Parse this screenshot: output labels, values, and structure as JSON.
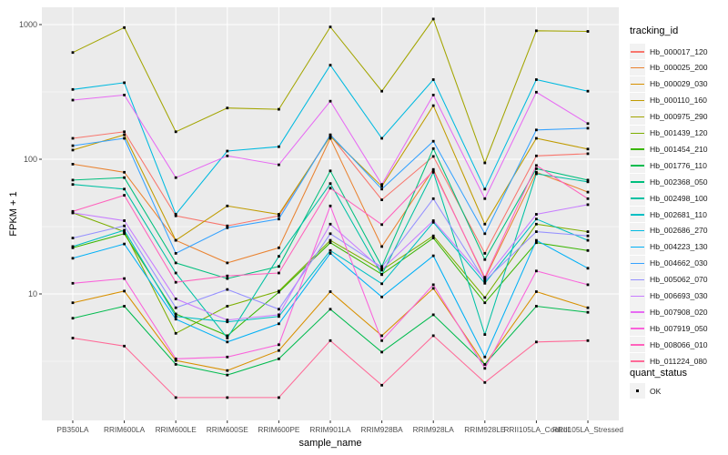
{
  "chart_data": {
    "type": "line",
    "title": "",
    "xlabel": "sample_name",
    "ylabel": "FPKM + 1",
    "x_categories": [
      "PB350LA",
      "RRIM600LA",
      "RRIM600LE",
      "RRIM600SE",
      "RRIM600PE",
      "RRIM901LA",
      "RRIM928BA",
      "RRIM928LA",
      "RRIM928LE",
      "RRII105LA_Control",
      "RRII105LA_Stressed"
    ],
    "y_axis": {
      "scale": "log10",
      "tick_values": [
        10,
        100,
        1000
      ],
      "tick_labels": [
        "10",
        "100",
        "1000"
      ],
      "minor_log10": [
        0.5,
        1.5,
        2.5
      ],
      "range_approx": [
        1.1,
        1300
      ],
      "grid": true
    },
    "legend": {
      "position": "right",
      "title": "tracking_id"
    },
    "quant_status": {
      "title": "quant_status",
      "items": [
        {
          "label": "OK",
          "shape": "black-square"
        }
      ]
    },
    "panel_bg": "#EBEBEB",
    "grid_color": "#FFFFFF",
    "tick_text_color": "#4D4D4D",
    "point_color": "#000000",
    "series": [
      {
        "name": "Hb_000017_120",
        "color": "#F8766D",
        "values": [
          143,
          160,
          38,
          32,
          38,
          150,
          50,
          105,
          20,
          106,
          110
        ]
      },
      {
        "name": "Hb_000025_200",
        "color": "#EA8331",
        "values": [
          92,
          80,
          25,
          17,
          22,
          143,
          22.5,
          84,
          13,
          80,
          57
        ]
      },
      {
        "name": "Hb_000029_030",
        "color": "#D89000",
        "values": [
          8.6,
          10.5,
          3.2,
          2.7,
          3.8,
          10.4,
          4.9,
          11,
          3.0,
          10.4,
          7.9
        ]
      },
      {
        "name": "Hb_000110_160",
        "color": "#C09B00",
        "values": [
          117,
          152,
          25,
          45,
          39,
          148,
          63,
          250,
          33,
          143,
          119
        ]
      },
      {
        "name": "Hb_000975_290",
        "color": "#A3A500",
        "values": [
          620,
          950,
          160,
          240,
          235,
          960,
          320,
          1100,
          94,
          900,
          890
        ]
      },
      {
        "name": "Hb_001439_120",
        "color": "#7CAE00",
        "values": [
          40,
          29,
          5.1,
          8.1,
          10.5,
          25,
          15,
          27,
          9.4,
          33,
          29
        ]
      },
      {
        "name": "Hb_001454_210",
        "color": "#39B600",
        "values": [
          22,
          28,
          7.1,
          4.9,
          10.3,
          24,
          14,
          26,
          8.6,
          24,
          21
        ]
      },
      {
        "name": "Hb_001776_110",
        "color": "#00BB4E",
        "values": [
          6.6,
          8.1,
          3.0,
          2.5,
          3.3,
          7.7,
          3.7,
          7.0,
          3.0,
          8.1,
          7.3
        ]
      },
      {
        "name": "Hb_002368_050",
        "color": "#00BF7D",
        "values": [
          70,
          73,
          17,
          13,
          16,
          82,
          16,
          120,
          18,
          85,
          70
        ]
      },
      {
        "name": "Hb_002498_100",
        "color": "#00C1A3",
        "values": [
          65,
          60,
          14.3,
          4.7,
          19,
          66,
          13.9,
          80,
          5.0,
          78,
          68
        ]
      },
      {
        "name": "Hb_002681_110",
        "color": "#00BFC4",
        "values": [
          22.5,
          29.7,
          6.8,
          6.2,
          6.8,
          21,
          11.9,
          34,
          12,
          36,
          25
        ]
      },
      {
        "name": "Hb_002686_270",
        "color": "#00BAE0",
        "values": [
          330,
          370,
          39,
          115,
          124,
          500,
          143,
          390,
          60,
          390,
          320
        ]
      },
      {
        "name": "Hb_004223_130",
        "color": "#00B0F6",
        "values": [
          18.4,
          23.5,
          6.5,
          4.4,
          6.0,
          20,
          9.5,
          19.2,
          3.4,
          25,
          15.5
        ]
      },
      {
        "name": "Hb_004662_030",
        "color": "#35A2FF",
        "values": [
          126,
          143,
          20,
          31,
          36,
          152,
          60,
          136,
          28,
          165,
          170
        ]
      },
      {
        "name": "Hb_005062_070",
        "color": "#9590FF",
        "values": [
          26,
          32,
          7.9,
          10.8,
          7.7,
          28,
          15.8,
          51,
          12.5,
          29,
          27
        ]
      },
      {
        "name": "Hb_006693_030",
        "color": "#C77CFF",
        "values": [
          40,
          35,
          9.2,
          6.4,
          7.0,
          33,
          15.2,
          35,
          12.8,
          39,
          46
        ]
      },
      {
        "name": "Hb_007908_020",
        "color": "#E76BF3",
        "values": [
          275,
          300,
          73,
          106,
          91,
          270,
          65,
          300,
          51,
          315,
          184
        ]
      },
      {
        "name": "Hb_007919_050",
        "color": "#FA62DB",
        "values": [
          12,
          13,
          3.3,
          3.4,
          4.2,
          45,
          4.5,
          11.7,
          2.8,
          14.8,
          11.7
        ]
      },
      {
        "name": "Hb_008066_010",
        "color": "#FF62BC",
        "values": [
          41,
          54,
          12.2,
          13.6,
          14.3,
          61,
          32.7,
          82,
          13.3,
          90,
          51
        ]
      },
      {
        "name": "Hb_011224_080",
        "color": "#FF6A98",
        "values": [
          4.7,
          4.1,
          1.7,
          1.7,
          1.7,
          4.5,
          2.1,
          4.9,
          2.2,
          4.4,
          4.5
        ]
      }
    ]
  }
}
